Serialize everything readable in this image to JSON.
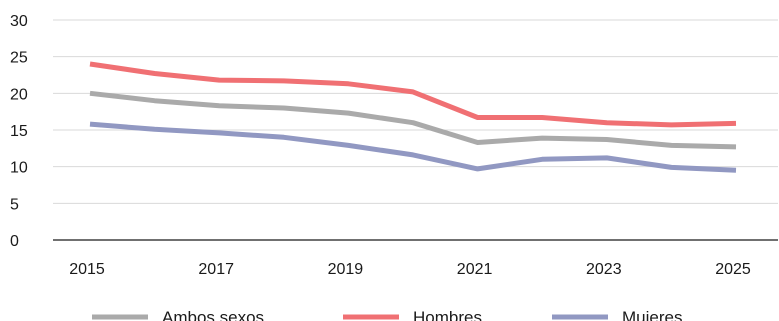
{
  "chart_data": {
    "type": "line",
    "title": "",
    "xlabel": "",
    "ylabel": "",
    "x": [
      2015,
      2016,
      2017,
      2018,
      2019,
      2020,
      2021,
      2022,
      2023,
      2024,
      2025
    ],
    "x_tick_labels": [
      "2015",
      "2017",
      "2019",
      "2021",
      "2023",
      "2025"
    ],
    "y_tick_labels": [
      "0",
      "5",
      "10",
      "15",
      "20",
      "25",
      "30"
    ],
    "ylim": [
      0,
      30
    ],
    "grid": true,
    "legend_position": "bottom",
    "series": [
      {
        "name": "Ambos sexos",
        "color": "#aaaaaa",
        "values": [
          20.0,
          19.0,
          18.3,
          18.0,
          17.3,
          16.0,
          13.3,
          13.9,
          13.7,
          12.9,
          12.7
        ]
      },
      {
        "name": "Hombres",
        "color": "#f07073",
        "values": [
          24.0,
          22.7,
          21.8,
          21.7,
          21.3,
          20.2,
          16.7,
          16.7,
          16.0,
          15.7,
          15.9
        ]
      },
      {
        "name": "Mujeres",
        "color": "#9198c2",
        "values": [
          15.8,
          15.1,
          14.6,
          14.0,
          12.9,
          11.6,
          9.7,
          11.0,
          11.2,
          9.9,
          9.5
        ]
      }
    ]
  }
}
